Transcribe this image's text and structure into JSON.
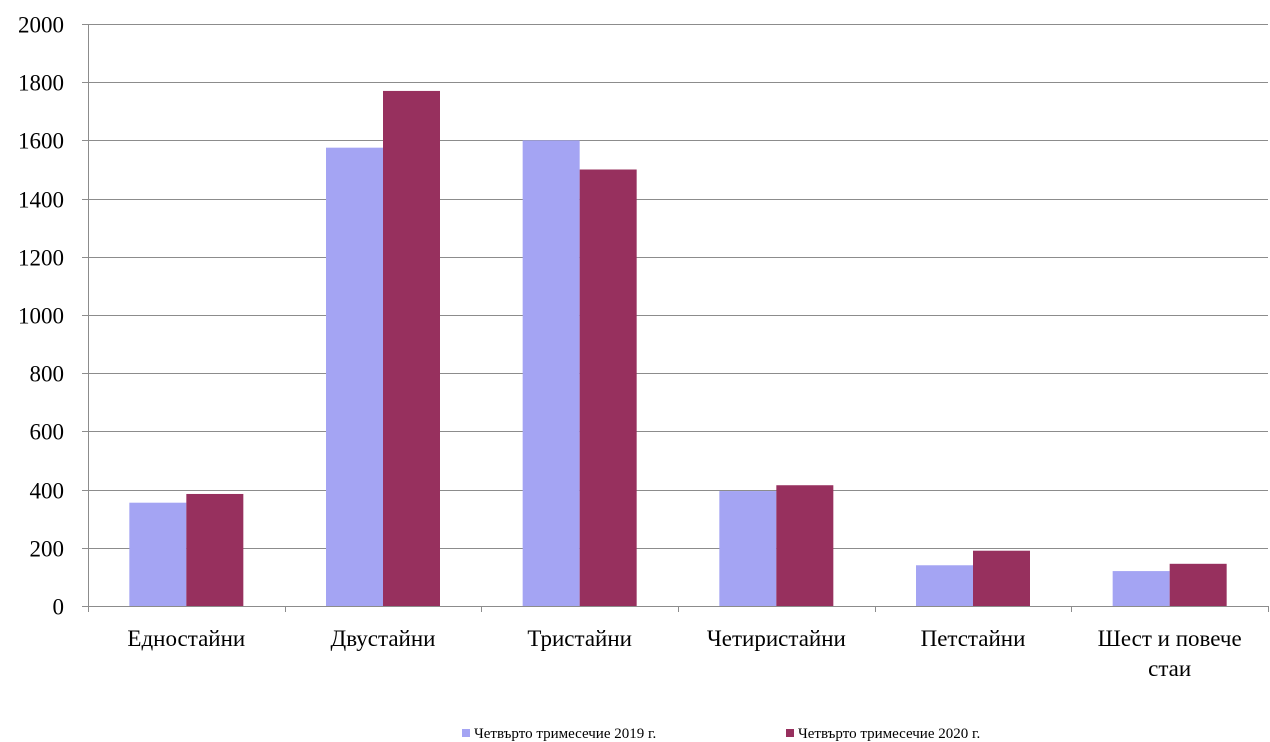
{
  "chart_data": {
    "type": "bar",
    "categories": [
      [
        "Едностайни"
      ],
      [
        "Двустайни"
      ],
      [
        "Тристайни"
      ],
      [
        "Четиристайни"
      ],
      [
        "Петстайни"
      ],
      [
        "Шест и повече",
        "стаи"
      ]
    ],
    "series": [
      {
        "name": "Четвърто тримесечие 2019 г.",
        "color": "#a4a4f3",
        "values": [
          355,
          1575,
          1600,
          395,
          140,
          120
        ]
      },
      {
        "name": "Четвърто тримесечие 2020 г.",
        "color": "#97305e",
        "values": [
          385,
          1770,
          1500,
          415,
          190,
          145
        ]
      }
    ],
    "ylim": [
      0,
      2000
    ],
    "yticks": [
      0,
      200,
      400,
      600,
      800,
      1000,
      1200,
      1400,
      1600,
      1800,
      2000
    ],
    "grid": true,
    "legend_position": "bottom",
    "title": "",
    "xlabel": "",
    "ylabel": ""
  }
}
